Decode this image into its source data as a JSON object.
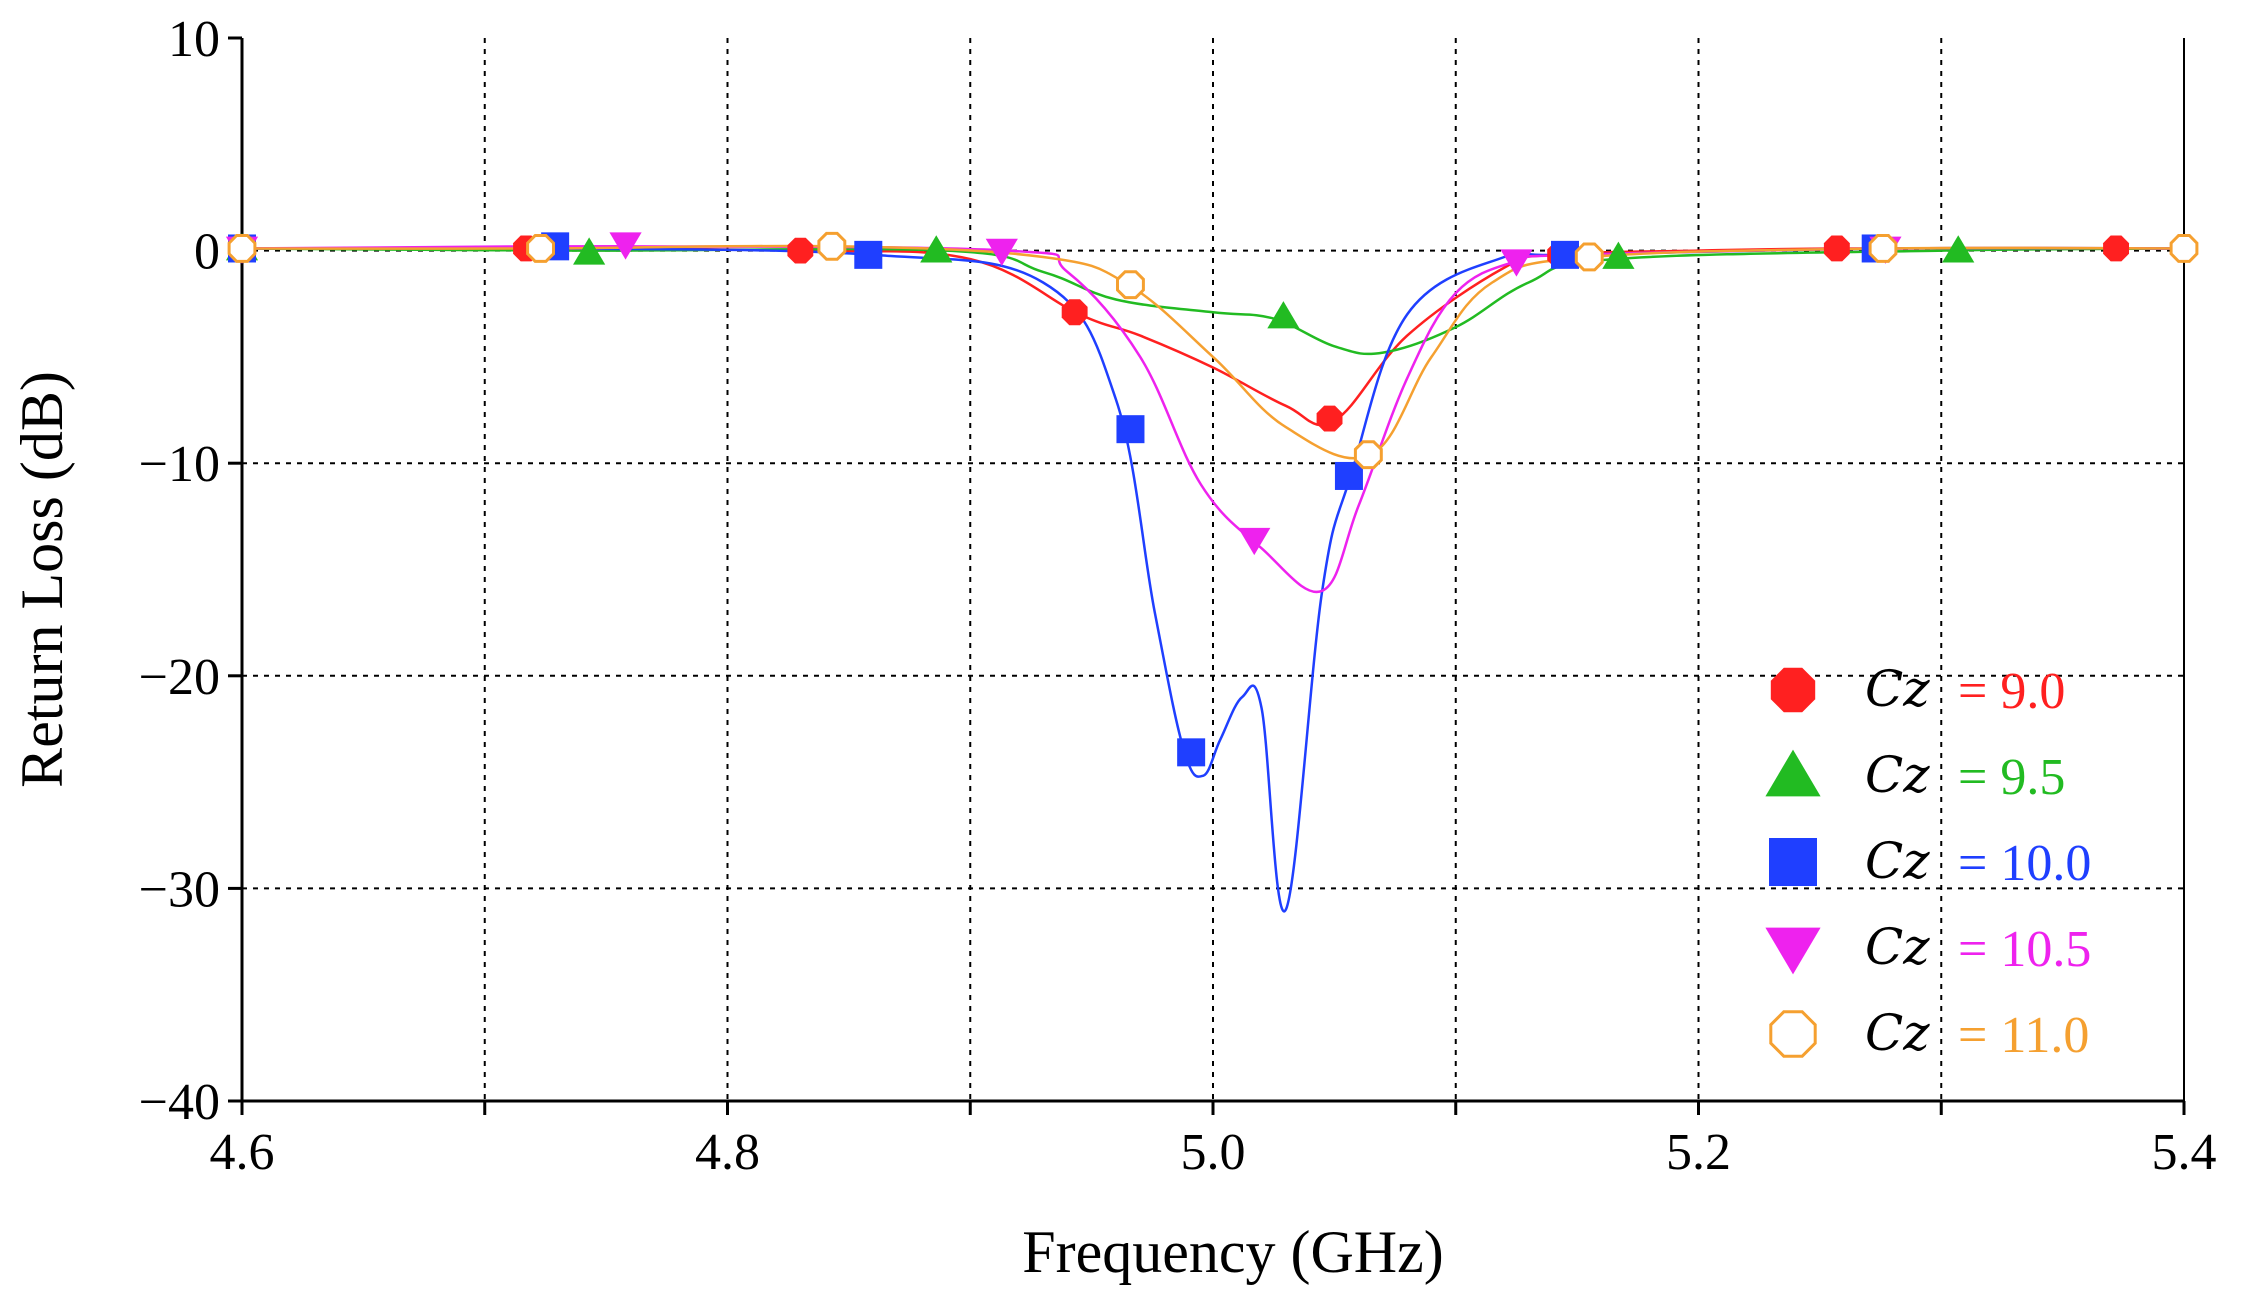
{
  "chart_data": {
    "type": "line",
    "title": "",
    "xlabel": "Frequency (GHz)",
    "ylabel": "Return Loss (dB)",
    "xlim": [
      4.6,
      5.4
    ],
    "ylim": [
      -40,
      10
    ],
    "grid": true,
    "legend_position": "bottom-right",
    "x_ticks": [
      4.6,
      4.7,
      4.8,
      4.9,
      5.0,
      5.1,
      5.2,
      5.3,
      5.4
    ],
    "x_tick_labels": [
      "4.6",
      "4.8",
      "5.0",
      "5.2",
      "5.4"
    ],
    "x_tick_label_values": [
      4.6,
      4.8,
      5.0,
      5.2,
      5.4
    ],
    "y_ticks": [
      10,
      0,
      -10,
      -20,
      -30,
      -40
    ],
    "y_tick_labels": [
      "10",
      "0",
      "−10",
      "−20",
      "−30",
      "−40"
    ],
    "series": [
      {
        "name": "Cz",
        "label_value": "= 9.0",
        "color": "#ff2020",
        "marker": "circle-filled",
        "x": [
          4.6,
          4.72,
          4.83,
          4.9,
          4.945,
          4.97,
          5.0,
          5.03,
          5.05,
          5.08,
          5.12,
          5.14,
          5.2,
          5.26,
          5.37,
          5.4
        ],
        "y": [
          0.1,
          0.1,
          0.0,
          -0.4,
          -3.0,
          -4.0,
          -5.5,
          -7.3,
          -8.0,
          -4.0,
          -0.8,
          -0.2,
          0.0,
          0.1,
          0.1,
          0.1
        ],
        "marker_x": [
          4.6,
          4.717,
          4.83,
          4.943,
          5.048,
          5.143,
          5.257,
          5.372
        ],
        "marker_y": [
          0.1,
          0.1,
          0.0,
          -2.9,
          -7.9,
          -0.2,
          0.1,
          0.1
        ]
      },
      {
        "name": "Cz",
        "label_value": "= 9.5",
        "color": "#22bb22",
        "marker": "triangle-up-filled",
        "x": [
          4.6,
          4.74,
          4.89,
          4.93,
          4.96,
          5.0,
          5.025,
          5.05,
          5.07,
          5.1,
          5.13,
          5.165,
          5.3,
          5.4
        ],
        "y": [
          0.1,
          0.0,
          0.0,
          -1.0,
          -2.3,
          -2.9,
          -3.2,
          -4.5,
          -4.8,
          -3.6,
          -1.5,
          -0.4,
          0.0,
          0.1
        ],
        "marker_x": [
          4.6,
          4.743,
          4.886,
          5.029,
          5.167,
          5.307
        ],
        "marker_y": [
          0.1,
          -0.1,
          0.0,
          -3.1,
          -0.3,
          0.0
        ]
      },
      {
        "name": "Cz",
        "label_value": "= 10.0",
        "color": "#1f3fff",
        "marker": "square-filled",
        "x": [
          4.6,
          4.73,
          4.86,
          4.93,
          4.96,
          4.976,
          4.988,
          4.996,
          5.003,
          5.012,
          5.02,
          5.03,
          5.045,
          5.057,
          5.08,
          5.12,
          5.145,
          5.28,
          5.4
        ],
        "y": [
          0.1,
          0.1,
          -0.2,
          -1.5,
          -7.0,
          -17.0,
          -23.5,
          -24.7,
          -23.0,
          -21.0,
          -21.5,
          -31.0,
          -16.0,
          -10.5,
          -3.0,
          -0.3,
          -0.2,
          0.1,
          0.1
        ],
        "marker_x": [
          4.6,
          4.729,
          4.858,
          4.966,
          4.991,
          5.056,
          5.145,
          5.273
        ],
        "marker_y": [
          0.1,
          0.2,
          -0.2,
          -8.4,
          -23.6,
          -10.6,
          -0.2,
          0.1
        ]
      },
      {
        "name": "Cz",
        "label_value": "= 10.5",
        "color": "#ee22ee",
        "marker": "triangle-down-filled",
        "x": [
          4.6,
          4.755,
          4.915,
          4.94,
          4.97,
          4.995,
          5.02,
          5.045,
          5.06,
          5.08,
          5.1,
          5.125,
          5.15,
          5.28,
          5.4
        ],
        "y": [
          0.1,
          0.2,
          0.0,
          -1.0,
          -5.0,
          -11.0,
          -14.0,
          -16.0,
          -12.0,
          -6.0,
          -2.0,
          -0.5,
          -0.2,
          0.1,
          0.1
        ],
        "marker_x": [
          4.6,
          4.758,
          4.913,
          5.017,
          5.125,
          5.277
        ],
        "marker_y": [
          0.1,
          0.3,
          0.0,
          -13.6,
          -0.5,
          0.1
        ]
      },
      {
        "name": "Cz",
        "label_value": "= 11.0",
        "color": "#f5a030",
        "marker": "circle-open",
        "x": [
          4.6,
          4.72,
          4.845,
          4.93,
          4.965,
          5.0,
          5.03,
          5.065,
          5.09,
          5.115,
          5.155,
          5.275,
          5.4
        ],
        "y": [
          0.1,
          0.1,
          0.2,
          -0.3,
          -1.6,
          -5.0,
          -8.3,
          -9.6,
          -5.0,
          -1.5,
          -0.3,
          0.1,
          0.1
        ],
        "marker_x": [
          4.6,
          4.723,
          4.843,
          4.966,
          5.064,
          5.155,
          5.276,
          5.4
        ],
        "marker_y": [
          0.1,
          0.1,
          0.2,
          -1.6,
          -9.6,
          -0.3,
          0.1,
          0.1
        ]
      }
    ]
  }
}
